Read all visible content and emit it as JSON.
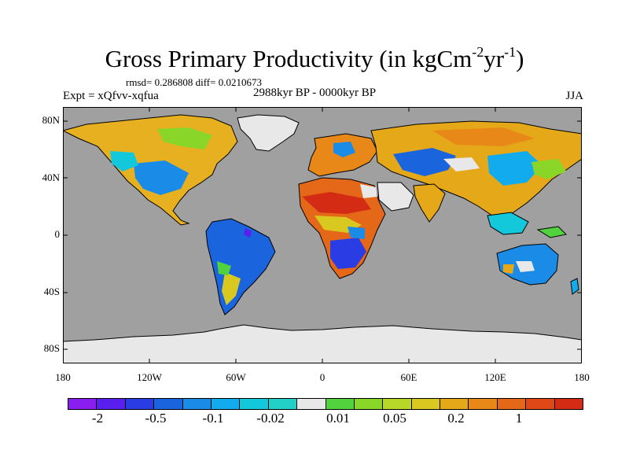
{
  "title": {
    "main": "Gross Primary Productivity (in kgCm",
    "exp1": "-2",
    "mid": "yr",
    "exp2": "-1",
    "end": ")"
  },
  "stats_text": "rmsd= 0.286808 diff= 0.0210673",
  "expt_text": "Expt = xQfvv-xqfua",
  "period_text": "2988kyr BP - 0000kyr BP",
  "season_text": "JJA",
  "y_axis_labels": [
    "80N",
    "40N",
    "0",
    "40S",
    "80S"
  ],
  "x_axis_labels": [
    "180",
    "120W",
    "60W",
    "0",
    "60E",
    "120E",
    "180"
  ],
  "colorbar": {
    "colors": [
      "#8a1ef0",
      "#5a1eee",
      "#2a3ce4",
      "#1a64de",
      "#1a8ce8",
      "#12acee",
      "#14c8dc",
      "#22d0c8",
      "#e8e8e8",
      "#52d23c",
      "#8ad628",
      "#b8d828",
      "#d8c820",
      "#e4a818",
      "#e88818",
      "#e46818",
      "#e04818",
      "#d42c14"
    ],
    "labels": [
      "-2",
      "-0.5",
      "-0.1",
      "-0.02",
      "0.01",
      "0.05",
      "0.2",
      "1"
    ]
  },
  "colors": {
    "ocean": "#a0a0a0",
    "ice": "#e8e8e8"
  }
}
